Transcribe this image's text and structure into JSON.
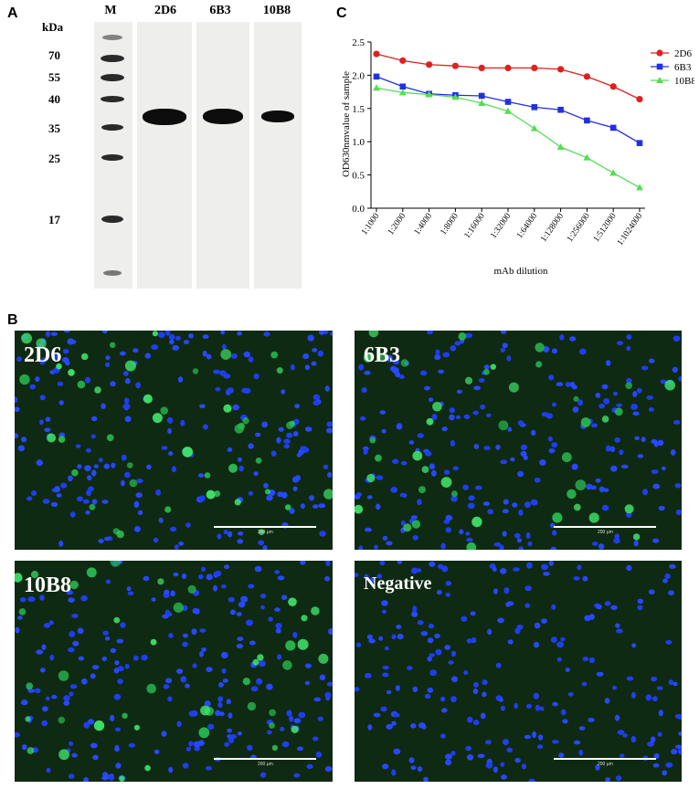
{
  "panels": {
    "a": "A",
    "b": "B",
    "c": "C"
  },
  "blot": {
    "unit": "kDa",
    "markers": [
      "70",
      "55",
      "40",
      "35",
      "25",
      "17"
    ],
    "lanes": [
      "M",
      "2D6",
      "6B3",
      "10B8"
    ]
  },
  "chart_data": {
    "type": "line",
    "xlabel": "mAb dilution",
    "ylabel": "OD630nmvalue of sample",
    "ylim": [
      0.0,
      2.5
    ],
    "yticks": [
      "0.0",
      "0.5",
      "1.0",
      "1.5",
      "2.0",
      "2.5"
    ],
    "grid": false,
    "legend_position": "top-right",
    "categories": [
      "1:1000",
      "1:2000",
      "1:4000",
      "1:8000",
      "1:16000",
      "1:32000",
      "1:64000",
      "1:128000",
      "1:256000",
      "1:512000",
      "1:1024000"
    ],
    "series": [
      {
        "name": "2D6",
        "color": "#e02020",
        "marker": "circle",
        "values": [
          2.32,
          2.22,
          2.16,
          2.14,
          2.11,
          2.11,
          2.11,
          2.09,
          1.98,
          1.83,
          1.64
        ]
      },
      {
        "name": "6B3",
        "color": "#2030e0",
        "marker": "square",
        "values": [
          1.98,
          1.83,
          1.72,
          1.7,
          1.69,
          1.6,
          1.52,
          1.48,
          1.32,
          1.21,
          0.98
        ]
      },
      {
        "name": "10B8",
        "color": "#55dd55",
        "marker": "triangle",
        "values": [
          1.81,
          1.74,
          1.71,
          1.67,
          1.58,
          1.46,
          1.2,
          0.92,
          0.76,
          0.53,
          0.31
        ]
      }
    ]
  },
  "ifa": {
    "labels": [
      "2D6",
      "6B3",
      "10B8",
      "Negative"
    ],
    "scale_text": "200 μm",
    "green_density": [
      1.0,
      0.9,
      0.9,
      0.0
    ]
  }
}
